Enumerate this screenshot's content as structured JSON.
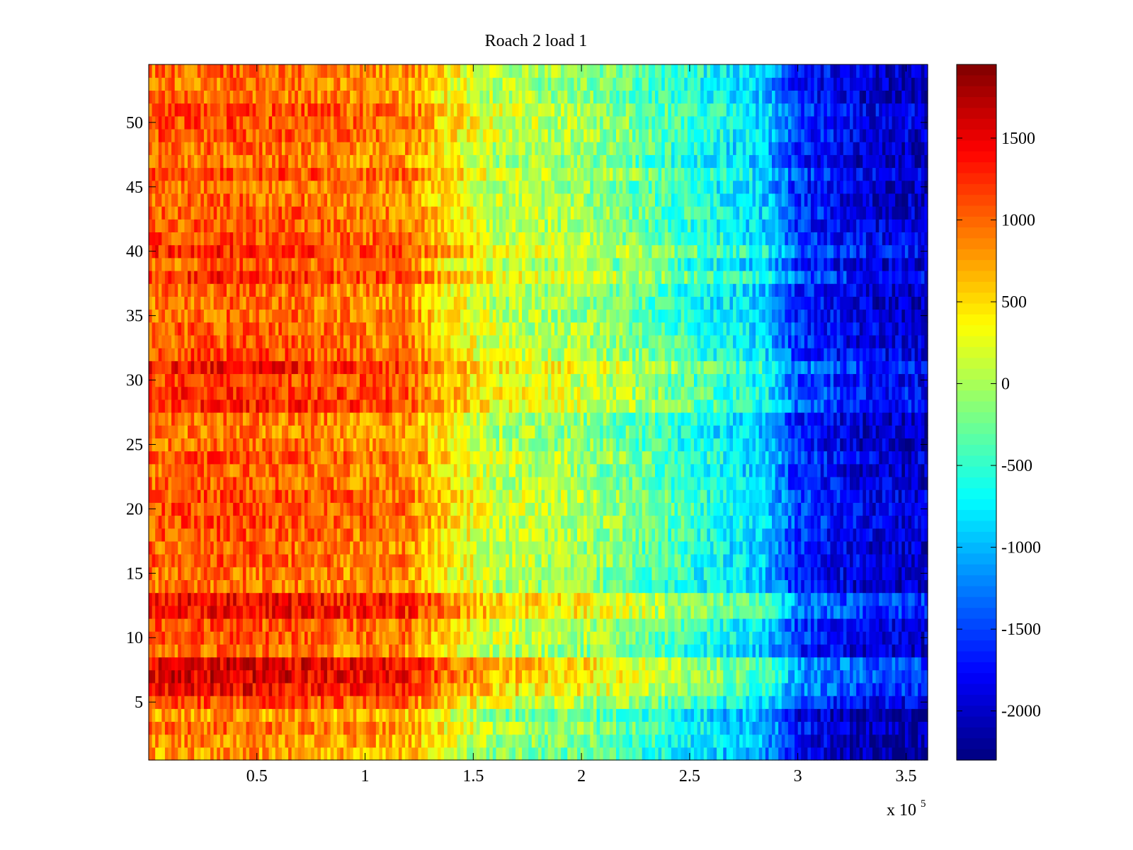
{
  "chart_data": {
    "type": "heatmap",
    "title": "Roach 2 load 1",
    "xlabel": "",
    "ylabel": "",
    "x_exponent_label": "x 10",
    "x_exponent_power": "5",
    "x_range": [
      0,
      360000
    ],
    "y_range": [
      0.5,
      54.5
    ],
    "x_ticks": [
      50000,
      100000,
      150000,
      200000,
      250000,
      300000,
      350000
    ],
    "x_tick_labels": [
      "0.5",
      "1",
      "1.5",
      "2",
      "2.5",
      "3",
      "3.5"
    ],
    "y_ticks": [
      5,
      10,
      15,
      20,
      25,
      30,
      35,
      40,
      45,
      50
    ],
    "y_tick_labels": [
      "5",
      "10",
      "15",
      "20",
      "25",
      "30",
      "35",
      "40",
      "45",
      "50"
    ],
    "rows": 54,
    "colorbar": {
      "colormap": "jet",
      "range": [
        -2300,
        1950
      ],
      "ticks": [
        1500,
        1000,
        500,
        0,
        -500,
        -1000,
        -1500,
        -2000
      ],
      "tick_labels": [
        "1500",
        "1000",
        "500",
        "0",
        "-500",
        "-1000",
        "-1500",
        "-2000"
      ]
    },
    "profile_x": [
      0,
      40000,
      80000,
      120000,
      135000,
      160000,
      200000,
      230000,
      260000,
      285000,
      300000,
      330000,
      360000
    ],
    "profile_values": [
      1000,
      1050,
      950,
      850,
      500,
      100,
      -50,
      -300,
      -650,
      -900,
      -1600,
      -1900,
      -2000
    ],
    "row_offsets": [
      {
        "rows": [
          6,
          7,
          8
        ],
        "offset": 500
      },
      {
        "rows": [
          12,
          13
        ],
        "offset": 350
      },
      {
        "rows": [
          28,
          29,
          30,
          31
        ],
        "offset": 250
      },
      {
        "rows": [
          38,
          40
        ],
        "offset": 200
      },
      {
        "rows": [
          1,
          2,
          3,
          4
        ],
        "offset": -150
      }
    ]
  }
}
